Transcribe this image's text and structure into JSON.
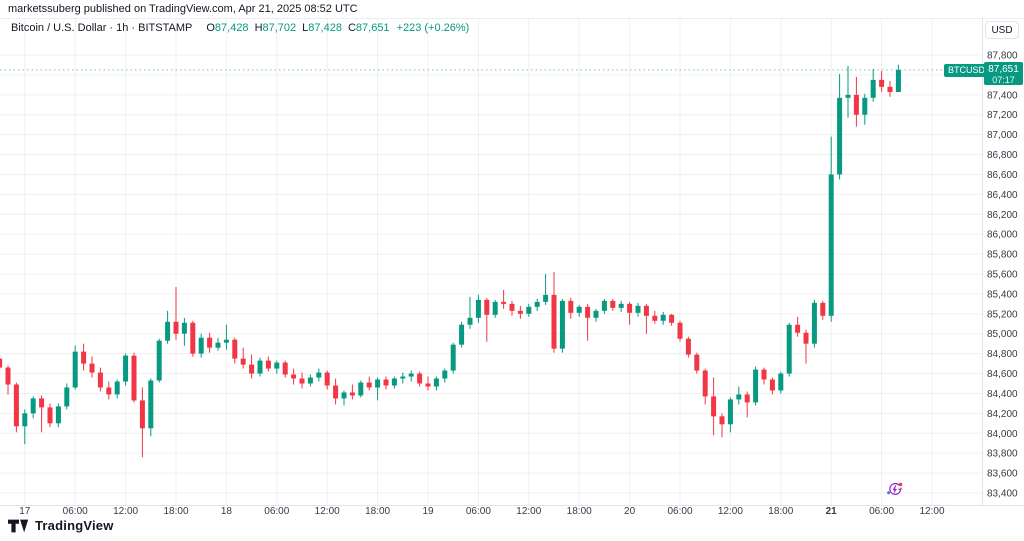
{
  "attribution": "marketssuberg published on TradingView.com, Apr 21, 2025 08:52 UTC",
  "legend": {
    "title": "Bitcoin / U.S. Dollar · 1h · BITSTAMP",
    "ohlc": [
      {
        "key": "O",
        "value": "87,428"
      },
      {
        "key": "H",
        "value": "87,702"
      },
      {
        "key": "L",
        "value": "87,428"
      },
      {
        "key": "C",
        "value": "87,651"
      }
    ],
    "change": "+223 (+0.26%)"
  },
  "price_axis": {
    "currency_button": "USD",
    "ticks": [
      87800,
      87600,
      87400,
      87200,
      87000,
      86800,
      86600,
      86400,
      86200,
      86000,
      85800,
      85600,
      85400,
      85200,
      85000,
      84800,
      84600,
      84400,
      84200,
      84000,
      83800,
      83600,
      83400
    ],
    "price_label": {
      "symbol": "BTCUSD",
      "price": "87,651",
      "countdown": "07:17"
    }
  },
  "time_axis": {
    "labels": [
      {
        "bar": 3,
        "text": "17",
        "bold": false
      },
      {
        "bar": 9,
        "text": "06:00",
        "bold": false
      },
      {
        "bar": 15,
        "text": "12:00",
        "bold": false
      },
      {
        "bar": 21,
        "text": "18:00",
        "bold": false
      },
      {
        "bar": 27,
        "text": "18",
        "bold": false
      },
      {
        "bar": 33,
        "text": "06:00",
        "bold": false
      },
      {
        "bar": 39,
        "text": "12:00",
        "bold": false
      },
      {
        "bar": 45,
        "text": "18:00",
        "bold": false
      },
      {
        "bar": 51,
        "text": "19",
        "bold": false
      },
      {
        "bar": 57,
        "text": "06:00",
        "bold": false
      },
      {
        "bar": 63,
        "text": "12:00",
        "bold": false
      },
      {
        "bar": 69,
        "text": "18:00",
        "bold": false
      },
      {
        "bar": 75,
        "text": "20",
        "bold": false
      },
      {
        "bar": 81,
        "text": "06:00",
        "bold": false
      },
      {
        "bar": 87,
        "text": "12:00",
        "bold": false
      },
      {
        "bar": 93,
        "text": "18:00",
        "bold": false
      },
      {
        "bar": 99,
        "text": "21",
        "bold": true
      },
      {
        "bar": 105,
        "text": "06:00",
        "bold": false
      },
      {
        "bar": 111,
        "text": "12:00",
        "bold": false
      }
    ]
  },
  "footer": {
    "logo_text": "TradingView"
  },
  "colors": {
    "up": "#089981",
    "down": "#F23645",
    "grid": "rgba(42,46,57,0.07)",
    "axis_text": "#363A45",
    "axis_line": "#E0E3EB",
    "label_bg": "#089981",
    "events_purple": "#962EC2",
    "events_red": "#F23645",
    "events_blue": "#2962FF",
    "text": "#131722"
  },
  "chart_data": {
    "type": "candlestick",
    "title": "Bitcoin / U.S. Dollar",
    "symbol": "BTCUSD",
    "exchange": "BITSTAMP",
    "interval": "1h",
    "start": "Apr 16 2025 21:00 UTC",
    "step_hours": 1,
    "ylim": [
      83300,
      87900
    ],
    "price_line": 87651,
    "last_bar": {
      "open": 87428,
      "high": 87702,
      "low": 87428,
      "close": 87651,
      "change": 223,
      "change_pct": 0.26
    },
    "bars": [
      [
        84750,
        84790,
        84620,
        84660
      ],
      [
        84660,
        84680,
        84390,
        84490
      ],
      [
        84490,
        84510,
        84010,
        84070
      ],
      [
        84070,
        84240,
        83890,
        84200
      ],
      [
        84200,
        84370,
        84150,
        84350
      ],
      [
        84350,
        84380,
        84010,
        84260
      ],
      [
        84260,
        84300,
        84060,
        84100
      ],
      [
        84100,
        84300,
        84060,
        84270
      ],
      [
        84270,
        84500,
        84240,
        84460
      ],
      [
        84460,
        84880,
        84440,
        84820
      ],
      [
        84820,
        84900,
        84630,
        84700
      ],
      [
        84700,
        84770,
        84560,
        84610
      ],
      [
        84610,
        84660,
        84420,
        84460
      ],
      [
        84460,
        84520,
        84340,
        84390
      ],
      [
        84390,
        84540,
        84350,
        84520
      ],
      [
        84520,
        84800,
        84480,
        84780
      ],
      [
        84780,
        84810,
        84310,
        84330
      ],
      [
        84330,
        84460,
        83760,
        84050
      ],
      [
        84050,
        84550,
        83970,
        84530
      ],
      [
        84530,
        84950,
        84510,
        84930
      ],
      [
        84930,
        85230,
        84900,
        85120
      ],
      [
        85120,
        85470,
        84940,
        85000
      ],
      [
        85000,
        85160,
        84880,
        85110
      ],
      [
        85110,
        85130,
        84770,
        84800
      ],
      [
        84800,
        85000,
        84760,
        84960
      ],
      [
        84960,
        85010,
        84810,
        84860
      ],
      [
        84860,
        84960,
        84830,
        84910
      ],
      [
        84910,
        85090,
        84840,
        84940
      ],
      [
        84940,
        84960,
        84700,
        84750
      ],
      [
        84750,
        84860,
        84650,
        84690
      ],
      [
        84690,
        84790,
        84550,
        84600
      ],
      [
        84600,
        84760,
        84570,
        84730
      ],
      [
        84730,
        84770,
        84620,
        84650
      ],
      [
        84650,
        84730,
        84600,
        84710
      ],
      [
        84710,
        84730,
        84560,
        84590
      ],
      [
        84590,
        84650,
        84490,
        84550
      ],
      [
        84550,
        84610,
        84450,
        84500
      ],
      [
        84500,
        84590,
        84470,
        84560
      ],
      [
        84560,
        84650,
        84520,
        84610
      ],
      [
        84610,
        84630,
        84440,
        84480
      ],
      [
        84480,
        84550,
        84290,
        84350
      ],
      [
        84350,
        84430,
        84280,
        84410
      ],
      [
        84410,
        84490,
        84340,
        84380
      ],
      [
        84380,
        84530,
        84360,
        84510
      ],
      [
        84510,
        84570,
        84430,
        84460
      ],
      [
        84460,
        84560,
        84330,
        84540
      ],
      [
        84540,
        84570,
        84440,
        84480
      ],
      [
        84480,
        84570,
        84450,
        84550
      ],
      [
        84550,
        84610,
        84500,
        84570
      ],
      [
        84570,
        84630,
        84520,
        84600
      ],
      [
        84600,
        84620,
        84470,
        84500
      ],
      [
        84500,
        84570,
        84430,
        84470
      ],
      [
        84470,
        84570,
        84430,
        84550
      ],
      [
        84550,
        84650,
        84510,
        84630
      ],
      [
        84630,
        84910,
        84600,
        84890
      ],
      [
        84890,
        85120,
        84860,
        85090
      ],
      [
        85090,
        85370,
        85050,
        85160
      ],
      [
        85160,
        85390,
        85110,
        85340
      ],
      [
        85340,
        85360,
        84920,
        85190
      ],
      [
        85190,
        85340,
        85160,
        85320
      ],
      [
        85320,
        85440,
        85250,
        85300
      ],
      [
        85300,
        85330,
        85180,
        85230
      ],
      [
        85230,
        85280,
        85150,
        85200
      ],
      [
        85200,
        85300,
        85170,
        85270
      ],
      [
        85270,
        85350,
        85230,
        85320
      ],
      [
        85320,
        85600,
        85290,
        85390
      ],
      [
        85390,
        85620,
        84810,
        84850
      ],
      [
        84850,
        85350,
        84810,
        85330
      ],
      [
        85330,
        85360,
        85150,
        85210
      ],
      [
        85210,
        85290,
        85170,
        85270
      ],
      [
        85270,
        85300,
        84930,
        85160
      ],
      [
        85160,
        85250,
        85120,
        85230
      ],
      [
        85230,
        85350,
        85200,
        85330
      ],
      [
        85330,
        85350,
        85230,
        85260
      ],
      [
        85260,
        85330,
        85220,
        85300
      ],
      [
        85300,
        85320,
        85090,
        85210
      ],
      [
        85210,
        85310,
        85170,
        85280
      ],
      [
        85280,
        85300,
        85000,
        85180
      ],
      [
        85180,
        85230,
        85100,
        85130
      ],
      [
        85130,
        85220,
        85090,
        85190
      ],
      [
        85190,
        85200,
        85080,
        85110
      ],
      [
        85110,
        85130,
        84920,
        84950
      ],
      [
        84950,
        84970,
        84760,
        84790
      ],
      [
        84790,
        84810,
        84600,
        84630
      ],
      [
        84630,
        84650,
        84290,
        84370
      ],
      [
        84370,
        84560,
        83980,
        84170
      ],
      [
        84170,
        84200,
        83960,
        84090
      ],
      [
        84090,
        84360,
        84010,
        84340
      ],
      [
        84340,
        84470,
        84290,
        84390
      ],
      [
        84390,
        84420,
        84160,
        84310
      ],
      [
        84310,
        84670,
        84280,
        84640
      ],
      [
        84640,
        84660,
        84490,
        84540
      ],
      [
        84540,
        84560,
        84390,
        84430
      ],
      [
        84430,
        84620,
        84400,
        84600
      ],
      [
        84600,
        85110,
        84570,
        85090
      ],
      [
        85090,
        85170,
        84970,
        85010
      ],
      [
        85010,
        85040,
        84700,
        84900
      ],
      [
        84900,
        85340,
        84860,
        85310
      ],
      [
        85310,
        85330,
        85140,
        85180
      ],
      [
        85180,
        86980,
        85120,
        86600
      ],
      [
        86600,
        87610,
        86550,
        87370
      ],
      [
        87370,
        87690,
        87170,
        87400
      ],
      [
        87400,
        87580,
        87080,
        87200
      ],
      [
        87200,
        87410,
        87100,
        87370
      ],
      [
        87370,
        87660,
        87330,
        87550
      ],
      [
        87550,
        87640,
        87430,
        87480
      ],
      [
        87480,
        87540,
        87380,
        87428
      ],
      [
        87428,
        87702,
        87428,
        87651
      ]
    ]
  }
}
